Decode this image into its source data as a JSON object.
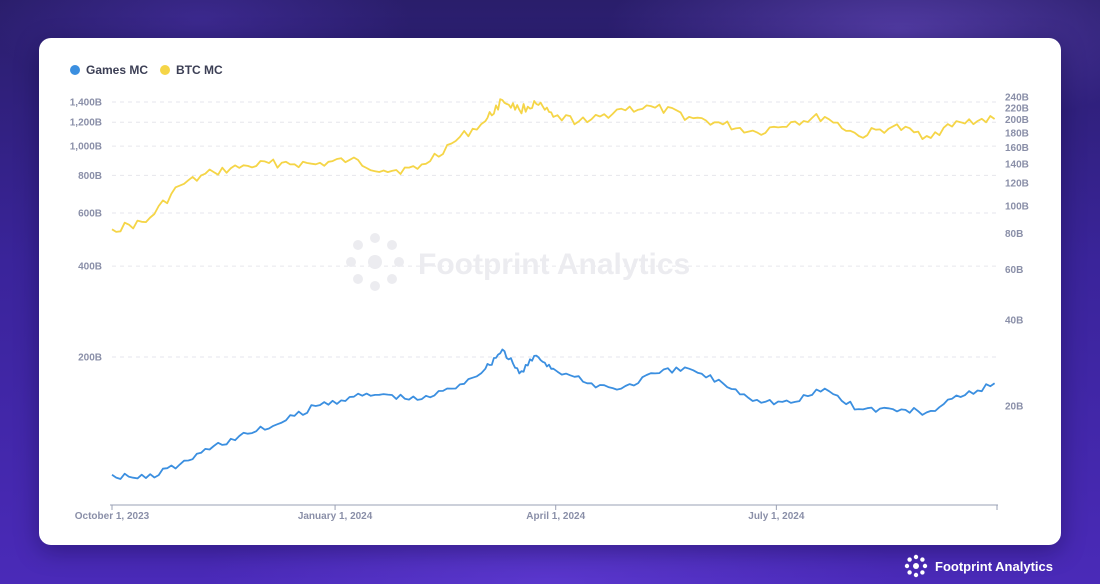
{
  "brand": {
    "name": "Footprint Analytics"
  },
  "watermark": {
    "text": "Footprint Analytics"
  },
  "colors": {
    "games": "#3b8fe0",
    "btc": "#f5d547",
    "axis_text": "#8a8fa8",
    "grid": "#e6e6ec"
  },
  "chart_data": {
    "type": "line",
    "title": "",
    "grid": true,
    "legend_position": "top-left",
    "x_ticks": [
      "October 1, 2023",
      "January 1, 2024",
      "April 1, 2024",
      "July 1, 2024"
    ],
    "x_range": [
      "2023-10-01",
      "2024-09-30"
    ],
    "y_left": {
      "scale": "log",
      "ticks": [
        "200B",
        "400B",
        "600B",
        "800B",
        "1,000B",
        "1,200B",
        "1,400B"
      ],
      "tick_values": [
        200,
        400,
        600,
        800,
        1000,
        1200,
        1400
      ]
    },
    "y_right": {
      "scale": "log",
      "ticks": [
        "20B",
        "40B",
        "60B",
        "80B",
        "100B",
        "120B",
        "140B",
        "160B",
        "180B",
        "200B",
        "220B",
        "240B"
      ],
      "tick_values": [
        20,
        40,
        60,
        80,
        100,
        120,
        140,
        160,
        180,
        200,
        220,
        240
      ]
    },
    "x": [
      "2023-10-01",
      "2023-10-15",
      "2023-10-29",
      "2023-11-12",
      "2023-11-26",
      "2023-12-10",
      "2023-12-24",
      "2024-01-07",
      "2024-01-21",
      "2024-02-04",
      "2024-02-18",
      "2024-03-03",
      "2024-03-10",
      "2024-03-17",
      "2024-03-24",
      "2024-03-31",
      "2024-04-14",
      "2024-04-28",
      "2024-05-12",
      "2024-05-26",
      "2024-06-09",
      "2024-06-23",
      "2024-07-07",
      "2024-07-21",
      "2024-08-04",
      "2024-08-18",
      "2024-09-01",
      "2024-09-15",
      "2024-09-29"
    ],
    "series": [
      {
        "name": "Games MC",
        "axis": "right",
        "values": [
          11.5,
          11.2,
          12.5,
          14.5,
          16,
          17.5,
          20,
          21.5,
          22,
          21,
          23,
          27,
          31.5,
          26,
          30,
          27,
          24,
          23,
          26,
          27,
          24,
          21,
          20.5,
          23,
          19.5,
          19.5,
          19,
          21.5,
          24
        ]
      },
      {
        "name": "BTC MC",
        "axis": "left",
        "values": [
          530,
          560,
          740,
          820,
          860,
          880,
          870,
          900,
          830,
          840,
          1020,
          1210,
          1420,
          1320,
          1380,
          1250,
          1200,
          1330,
          1340,
          1250,
          1180,
          1110,
          1200,
          1250,
          1080,
          1160,
          1080,
          1200,
          1230
        ]
      }
    ]
  }
}
